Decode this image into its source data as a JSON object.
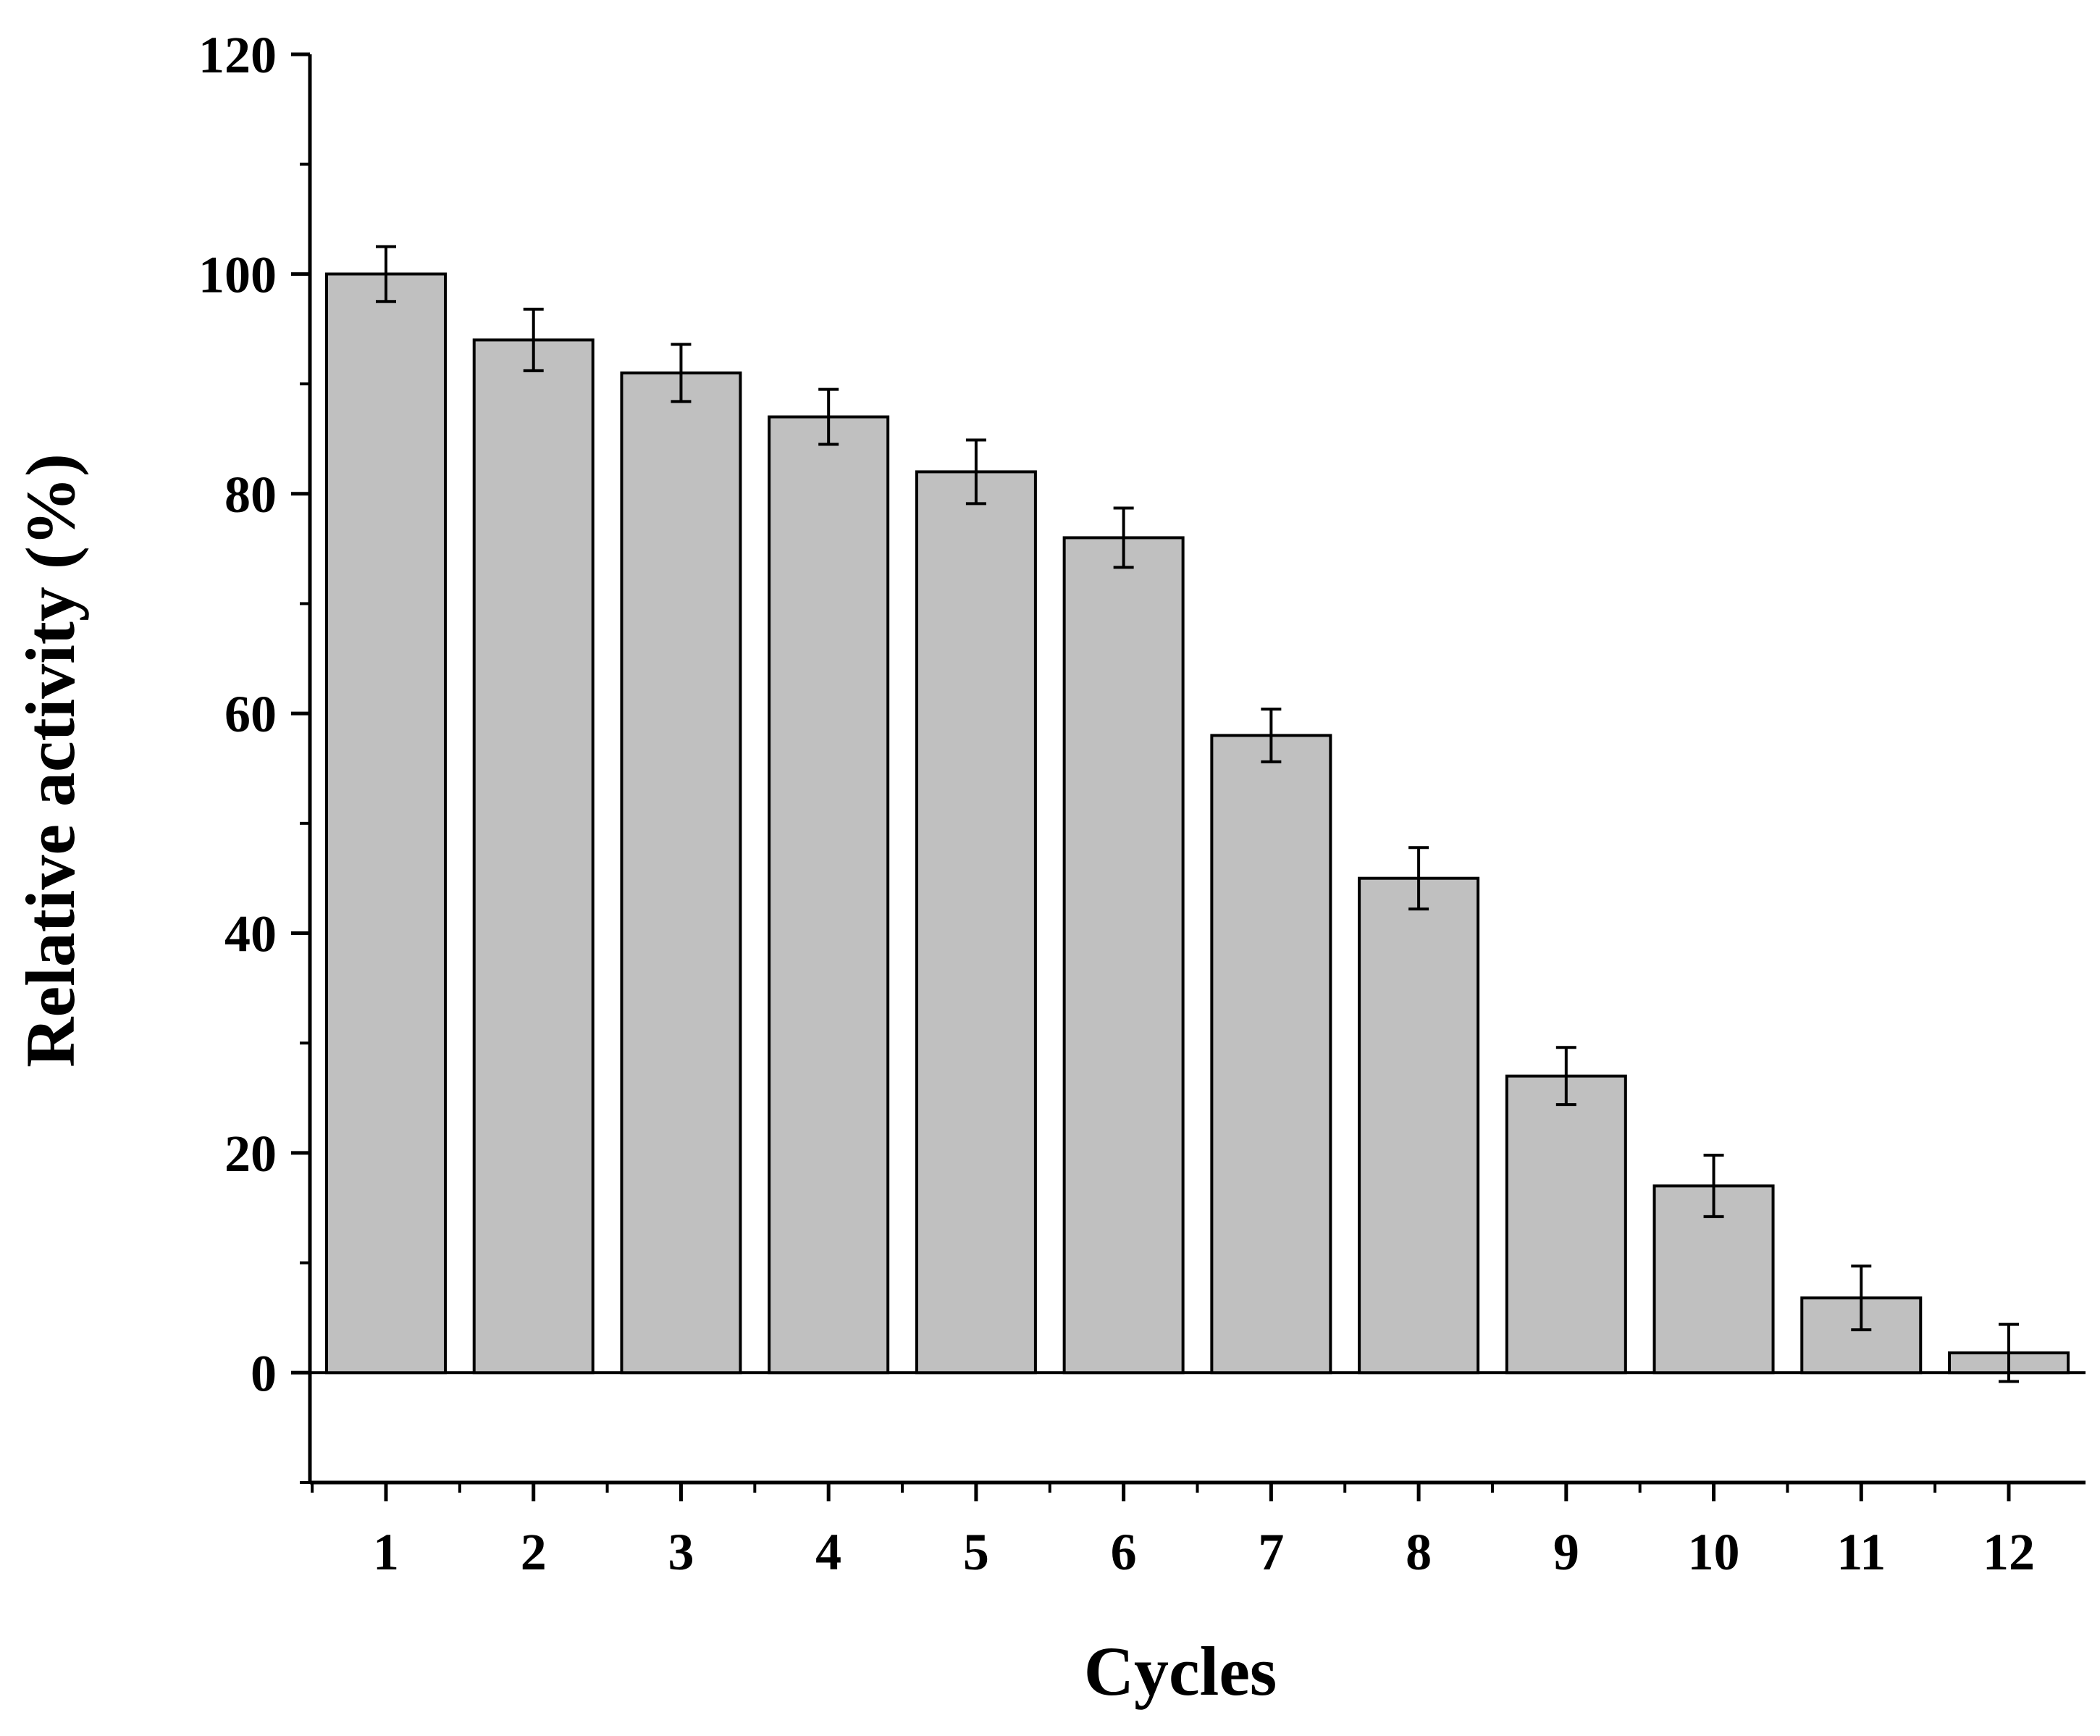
{
  "chart_data": {
    "type": "bar",
    "title": "",
    "xlabel": "Cycles",
    "ylabel": "Relative activity (%)",
    "categories": [
      "1",
      "2",
      "3",
      "4",
      "5",
      "6",
      "7",
      "8",
      "9",
      "10",
      "11",
      "12"
    ],
    "values": [
      100,
      94,
      91,
      87,
      82,
      76,
      58,
      45,
      27,
      17,
      6.8,
      1.8
    ],
    "errors": [
      2.5,
      2.8,
      2.6,
      2.5,
      2.9,
      2.7,
      2.4,
      2.8,
      2.6,
      2.8,
      2.9,
      2.6
    ],
    "ylim": [
      -10,
      120
    ],
    "yticks": [
      "0",
      "20",
      "40",
      "60",
      "80",
      "100",
      "120"
    ],
    "ytick_values": [
      0,
      20,
      40,
      60,
      80,
      100,
      120
    ],
    "bar_color": "#c0c0c0",
    "edge_color": "#000000",
    "grid": false,
    "legend": "none"
  }
}
